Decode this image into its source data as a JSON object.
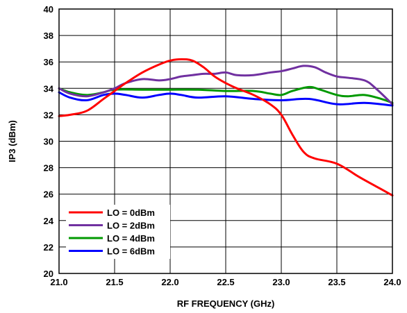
{
  "chart_data": {
    "type": "line",
    "title": "",
    "xlabel": "RF FREQUENCY (GHz)",
    "ylabel": "IP3 (dBm)",
    "xlim": [
      21.0,
      24.0
    ],
    "ylim": [
      20,
      40
    ],
    "xticks": [
      "21.0",
      "21.5",
      "22.0",
      "22.5",
      "23.0",
      "23.5",
      "24.0"
    ],
    "yticks": [
      "20",
      "22",
      "24",
      "26",
      "28",
      "30",
      "32",
      "34",
      "36",
      "38",
      "40"
    ],
    "grid": true,
    "legend_position": "bottom-left",
    "series": [
      {
        "name": "LO = 0dBm",
        "color": "#ff0000",
        "x": [
          21.0,
          21.1,
          21.25,
          21.4,
          21.5,
          21.6,
          21.75,
          21.9,
          22.0,
          22.1,
          22.2,
          22.3,
          22.4,
          22.5,
          22.6,
          22.75,
          22.9,
          23.0,
          23.1,
          23.2,
          23.3,
          23.5,
          23.7,
          23.85,
          24.0
        ],
        "y": [
          31.9,
          32.0,
          32.3,
          33.2,
          33.8,
          34.4,
          35.2,
          35.8,
          36.1,
          36.2,
          36.1,
          35.6,
          34.9,
          34.4,
          34.0,
          33.5,
          32.8,
          32.0,
          30.5,
          29.2,
          28.7,
          28.3,
          27.3,
          26.6,
          25.9
        ]
      },
      {
        "name": "LO = 2dBm",
        "color": "#7030a0",
        "x": [
          21.0,
          21.1,
          21.25,
          21.4,
          21.5,
          21.6,
          21.75,
          21.9,
          22.0,
          22.1,
          22.2,
          22.3,
          22.4,
          22.5,
          22.6,
          22.75,
          22.9,
          23.0,
          23.1,
          23.2,
          23.3,
          23.4,
          23.5,
          23.6,
          23.75,
          23.85,
          24.0
        ],
        "y": [
          34.0,
          33.6,
          33.4,
          33.7,
          34.0,
          34.4,
          34.7,
          34.6,
          34.7,
          34.9,
          35.0,
          35.1,
          35.1,
          35.2,
          35.0,
          35.0,
          35.2,
          35.3,
          35.5,
          35.7,
          35.6,
          35.2,
          34.9,
          34.8,
          34.6,
          34.0,
          32.8
        ]
      },
      {
        "name": "LO = 4dBm",
        "color": "#009900",
        "x": [
          21.0,
          21.1,
          21.25,
          21.4,
          21.5,
          21.75,
          22.0,
          22.25,
          22.5,
          22.75,
          22.9,
          23.0,
          23.1,
          23.25,
          23.35,
          23.5,
          23.6,
          23.75,
          23.9,
          24.0
        ],
        "y": [
          34.0,
          33.7,
          33.5,
          33.7,
          33.9,
          33.9,
          33.9,
          33.9,
          33.8,
          33.8,
          33.6,
          33.5,
          33.8,
          34.1,
          33.9,
          33.5,
          33.4,
          33.5,
          33.2,
          32.9
        ]
      },
      {
        "name": "LO = 6dBm",
        "color": "#0000ff",
        "x": [
          21.0,
          21.1,
          21.25,
          21.4,
          21.5,
          21.6,
          21.75,
          21.9,
          22.0,
          22.1,
          22.25,
          22.5,
          22.75,
          23.0,
          23.25,
          23.5,
          23.75,
          24.0
        ],
        "y": [
          33.7,
          33.3,
          33.1,
          33.5,
          33.6,
          33.5,
          33.3,
          33.5,
          33.6,
          33.5,
          33.3,
          33.4,
          33.2,
          33.1,
          33.2,
          32.8,
          32.9,
          32.7
        ]
      }
    ]
  }
}
